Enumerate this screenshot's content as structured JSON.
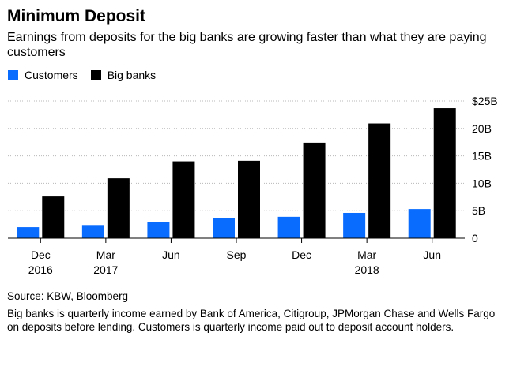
{
  "header": {
    "title": "Minimum Deposit",
    "subtitle": "Earnings from deposits for the big banks are growing faster than what they are paying customers"
  },
  "legend": [
    {
      "label": "Customers",
      "color": "#0a6cff"
    },
    {
      "label": "Big banks",
      "color": "#000000"
    }
  ],
  "chart_data": {
    "type": "bar",
    "title": "Minimum Deposit",
    "subtitle": "Earnings from deposits for the big banks are growing faster than what they are paying customers",
    "categories": [
      "Dec 2016",
      "Mar 2017",
      "Jun",
      "Sep",
      "Dec",
      "Mar 2018",
      "Jun"
    ],
    "category_lines": [
      [
        "Dec",
        "2016"
      ],
      [
        "Mar",
        "2017"
      ],
      [
        "Jun",
        ""
      ],
      [
        "Sep",
        ""
      ],
      [
        "Dec",
        ""
      ],
      [
        "Mar",
        "2018"
      ],
      [
        "Jun",
        ""
      ]
    ],
    "series": [
      {
        "name": "Customers",
        "color": "#0a6cff",
        "values": [
          2.0,
          2.4,
          2.9,
          3.6,
          3.9,
          4.6,
          5.3
        ]
      },
      {
        "name": "Big banks",
        "color": "#000000",
        "values": [
          7.6,
          10.9,
          14.0,
          14.1,
          17.4,
          20.9,
          23.7
        ]
      }
    ],
    "y_ticks": [
      "0",
      "5B",
      "10B",
      "15B",
      "20B",
      "$25B"
    ],
    "ylim": [
      0,
      25
    ],
    "units": "billions of dollars",
    "grid": "horizontal dotted",
    "y_axis_side": "right",
    "legend_position": "top-left"
  },
  "footer": {
    "source": "Source: KBW, Bloomberg",
    "note": "Big banks is quarterly income earned by Bank of America, Citigroup, JPMorgan Chase and Wells Fargo on deposits before lending. Customers is quarterly income paid out to deposit account holders."
  }
}
